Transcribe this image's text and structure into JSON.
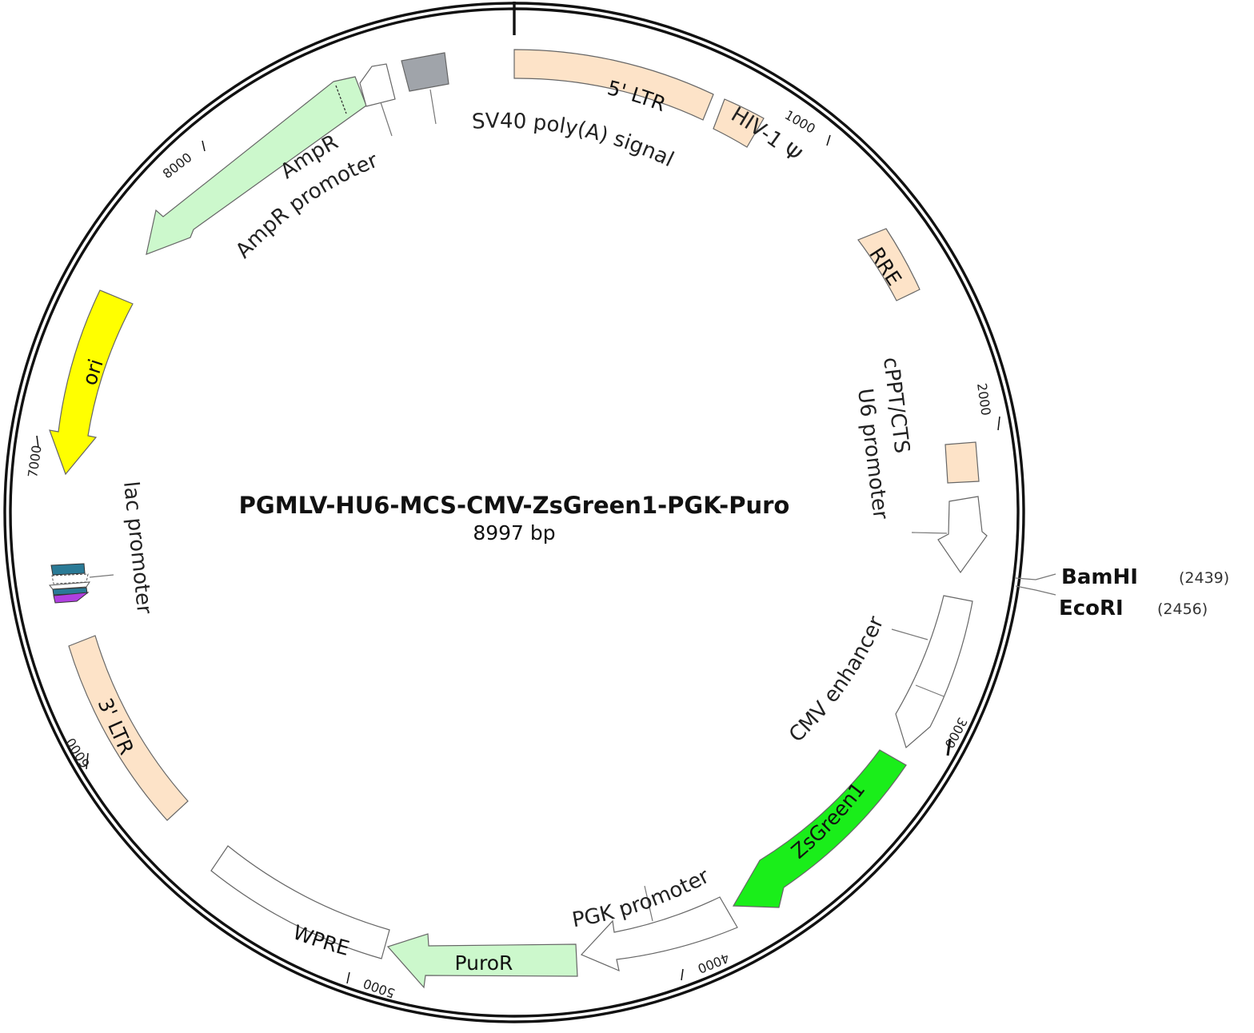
{
  "plasmid": {
    "name": "PGMLV-HU6-MCS-CMV-ZsGreen1-PGK-Puro",
    "size_label": "8997 bp"
  },
  "ticks": [
    "1000",
    "2000",
    "3000",
    "4000",
    "5000",
    "6000",
    "7000",
    "8000"
  ],
  "features": [
    {
      "name": "5' LTR",
      "color": "#fde3c8",
      "label_inside": "5' LTR"
    },
    {
      "name": "HIV-1 Ψ",
      "color": "#fde3c8",
      "label": "HIV-1 Ψ"
    },
    {
      "name": "RRE",
      "color": "#fde3c8",
      "label_inside": "RRE"
    },
    {
      "name": "cPPT/CTS",
      "color": "#fde3c8",
      "label": "cPPT/CTS"
    },
    {
      "name": "U6 promoter",
      "color": "#ffffff",
      "label": "U6 promoter"
    },
    {
      "name": "CMV enhancer",
      "color": "#ffffff",
      "label": "CMV enhancer"
    },
    {
      "name": "ZsGreen1",
      "color": "#1aee1a",
      "label_inside": "ZsGreen1"
    },
    {
      "name": "PGK promoter",
      "color": "#ffffff",
      "label": "PGK promoter"
    },
    {
      "name": "PuroR",
      "color": "#ccf8cc",
      "label_inside": "PuroR"
    },
    {
      "name": "WPRE",
      "color": "#ffffff",
      "label_inside": "WPRE"
    },
    {
      "name": "3' LTR",
      "color": "#fde3c8",
      "label_inside": "3' LTR"
    },
    {
      "name": "lac promoter",
      "color": "#ffffff",
      "label": "lac promoter"
    },
    {
      "name": "ori",
      "color": "#ffff00",
      "label_inside": "ori"
    },
    {
      "name": "AmpR",
      "color": "#ccf8cc",
      "label": "AmpR"
    },
    {
      "name": "AmpR promoter",
      "color": "#ffffff",
      "label": "AmpR promoter"
    },
    {
      "name": "SV40 poly(A) signal",
      "color": "#a0a4aa",
      "label": "SV40 poly(A) signal"
    }
  ],
  "sites": [
    {
      "name": "BamHI",
      "position": "(2439)"
    },
    {
      "name": "EcoRI",
      "position": "(2456)"
    }
  ]
}
